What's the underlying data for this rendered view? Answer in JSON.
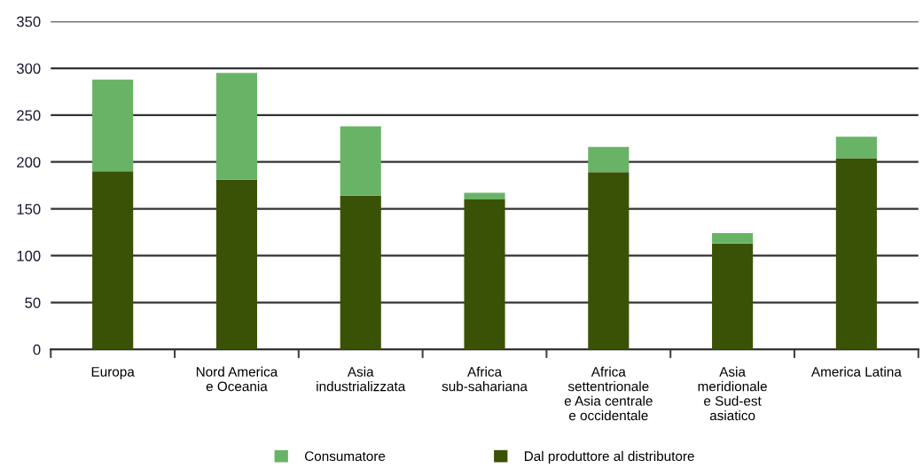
{
  "chart_data": {
    "type": "bar",
    "stacked": true,
    "categories": [
      "Europa",
      "Nord America\ne Oceania",
      "Asia\nindustrializzata",
      "Africa\nsub-sahariana",
      "Africa\nsettentrionale\ne Asia centrale\ne occidentale",
      "Asia\nmeridionale\ne Sud-est\nasiatico",
      "America Latina"
    ],
    "series": [
      {
        "name": "Dal produttore al distributore",
        "color": "#3a5206",
        "values": [
          190,
          181,
          164,
          160,
          189,
          113,
          204
        ]
      },
      {
        "name": "Consumatore",
        "color": "#69b366",
        "values": [
          98,
          114,
          74,
          7,
          27,
          11,
          23
        ]
      }
    ],
    "ylim": [
      0,
      350
    ],
    "yticks": [
      0,
      50,
      100,
      150,
      200,
      250,
      300,
      350
    ],
    "grid": "y",
    "legend": "bottom"
  }
}
